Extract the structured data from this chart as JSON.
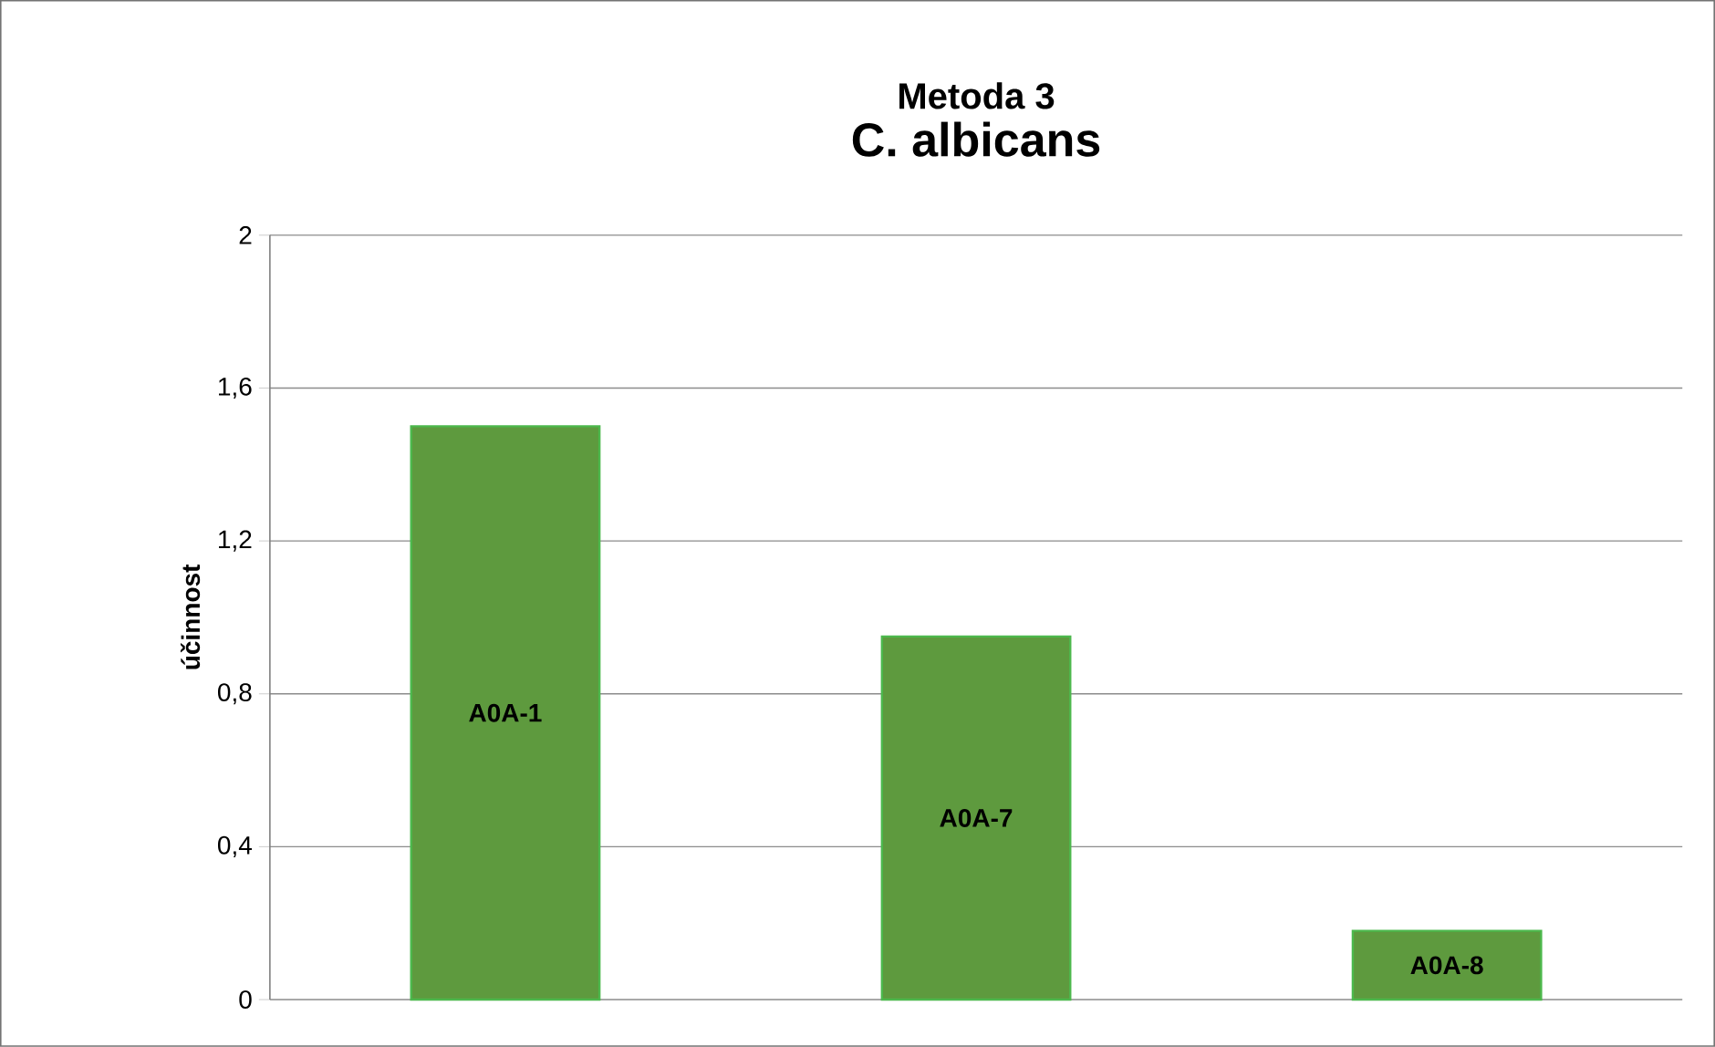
{
  "chart_data": {
    "type": "bar",
    "title": "Metoda 3",
    "subtitle": "C. albicans",
    "ylabel": "účinnost",
    "categories": [
      "A0A-1",
      "A0A-7",
      "A0A-8"
    ],
    "values": [
      1.5,
      0.95,
      0.18
    ],
    "color": "#5e9a3e",
    "ylim": [
      0,
      2
    ],
    "yticks": [
      0,
      {
        "value": 0.4,
        "label": "0,4"
      },
      {
        "value": 0.8,
        "label": "0,8"
      },
      {
        "value": 1.2,
        "label": "1,2"
      },
      {
        "value": 1.6,
        "label": "1,6"
      },
      2
    ],
    "grid": "y",
    "tick_labels": "y"
  }
}
